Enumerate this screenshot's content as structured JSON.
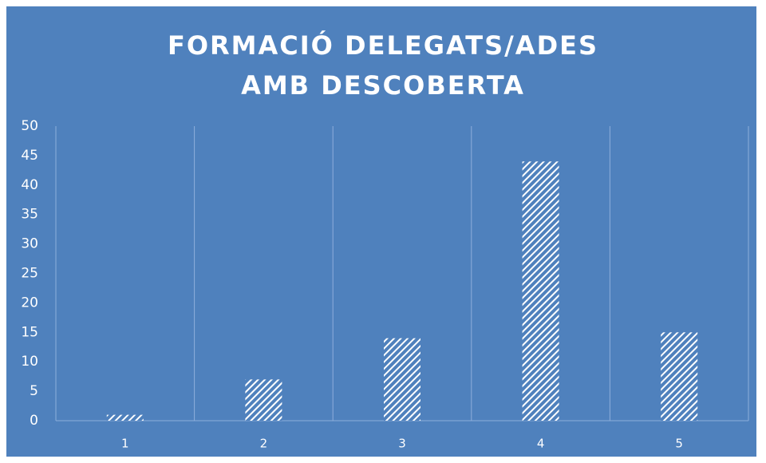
{
  "chart_data": {
    "type": "bar",
    "title": "FORMACIÓ DELEGATS/ADES AMB DESCOBERTA",
    "categories": [
      "1",
      "2",
      "3",
      "4",
      "5"
    ],
    "values": [
      1,
      7,
      14,
      44,
      15
    ],
    "color": "#ffffff",
    "ylim": [
      0,
      50
    ],
    "yticks": [
      0,
      5,
      10,
      15,
      20,
      25,
      30,
      35,
      40,
      45,
      50
    ],
    "grid": true
  }
}
